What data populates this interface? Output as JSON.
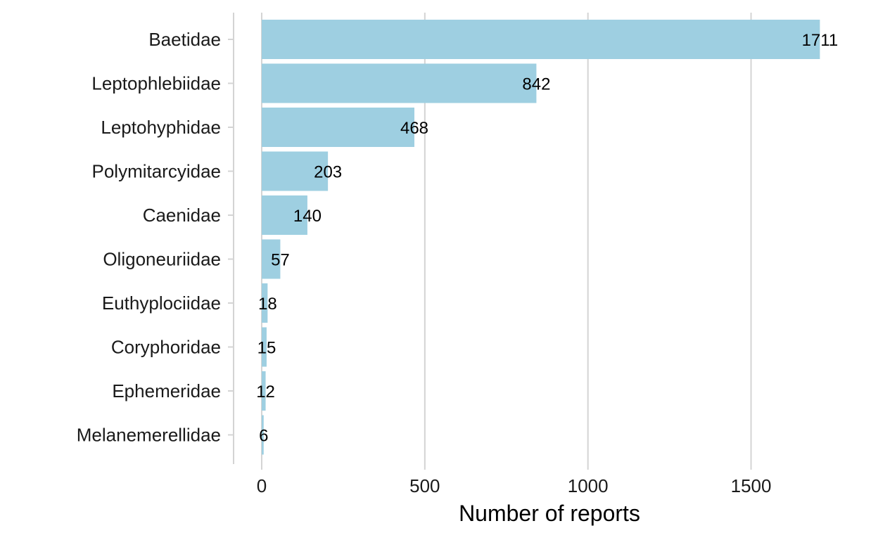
{
  "chart_data": {
    "type": "bar",
    "orientation": "horizontal",
    "title": "",
    "xlabel": "Number of reports",
    "ylabel": "",
    "xlim": [
      0,
      1800
    ],
    "xticks": [
      0,
      500,
      1000,
      1500
    ],
    "grid": "vertical-major",
    "bar_color": "#9ecfe1",
    "categories": [
      "Baetidae",
      "Leptophlebiidae",
      "Leptohyphidae",
      "Polymitarcyidae",
      "Caenidae",
      "Oligoneuriidae",
      "Euthyplociidae",
      "Coryphoridae",
      "Ephemeridae",
      "Melanemerellidae"
    ],
    "values": [
      1711,
      842,
      468,
      203,
      140,
      57,
      18,
      15,
      12,
      6
    ],
    "data_labels": [
      "1711",
      "842",
      "468",
      "203",
      "140",
      "57",
      "18",
      "15",
      "12",
      "6"
    ]
  }
}
